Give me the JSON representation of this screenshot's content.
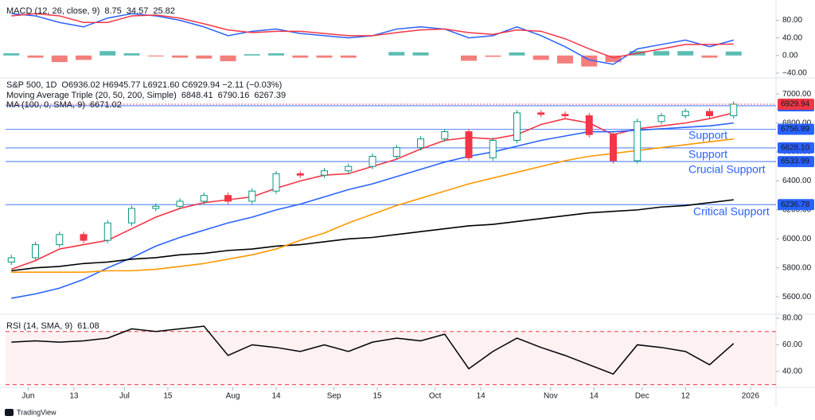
{
  "chart_data": [
    {
      "type": "macd",
      "title": "MACD (12, 26, close, 9)",
      "readouts": [
        {
          "text": "8.75",
          "color": "#26a69a"
        },
        {
          "text": "34.57",
          "color": "#2962ff"
        },
        {
          "text": "25.82",
          "color": "#f23645"
        }
      ],
      "x": [
        0,
        5,
        10,
        15,
        20,
        25,
        30,
        35,
        40,
        45,
        50,
        55,
        60,
        65,
        70,
        75,
        80,
        85,
        90,
        95,
        100,
        105,
        110,
        115,
        120,
        125,
        130,
        135,
        140,
        145,
        150
      ],
      "xlim": [
        -1.2,
        158.8
      ],
      "ylim": [
        -51,
        117
      ],
      "yticks": [
        {
          "value": -40,
          "label": "−40.00"
        },
        {
          "value": 0,
          "label": "0.00"
        },
        {
          "value": 40,
          "label": "40.00"
        },
        {
          "value": 80,
          "label": "80.00"
        }
      ],
      "histogram": {
        "positive_color": "#26a69a",
        "negative_color": "#ef5350",
        "values": [
          5,
          -5,
          -15,
          -10,
          10,
          5,
          -2,
          -5,
          -7,
          -13,
          3,
          5,
          -5,
          -5,
          -5,
          0,
          8,
          7,
          0,
          -12,
          -3,
          7,
          -10,
          -18,
          -25,
          -15,
          10,
          10,
          10,
          -5,
          9
        ]
      },
      "series": [
        {
          "color": "#2962ff",
          "values": [
            95,
            90,
            75,
            65,
            85,
            95,
            90,
            80,
            65,
            45,
            55,
            60,
            50,
            45,
            40,
            45,
            60,
            65,
            60,
            40,
            45,
            65,
            45,
            20,
            -10,
            -20,
            15,
            25,
            35,
            20,
            35
          ]
        },
        {
          "color": "#f23645",
          "values": [
            90,
            95,
            90,
            75,
            75,
            90,
            92,
            85,
            72,
            58,
            52,
            55,
            55,
            50,
            45,
            45,
            52,
            58,
            60,
            52,
            48,
            58,
            55,
            38,
            15,
            -5,
            5,
            15,
            25,
            25,
            26
          ]
        }
      ]
    },
    {
      "type": "candlestick",
      "title": "S&P 500, 1D",
      "readout": "O6936.02 H6945.77 L6921.60 C6929.94 −2.11 (−0.03%)",
      "indicators": [
        {
          "label": "Moving Average Triple (20, 50, 200, Simple)",
          "readouts": [
            {
              "text": "6848.41",
              "color": "#f23645"
            },
            {
              "text": "6790.16",
              "color": "#2962ff"
            },
            {
              "text": "6267.39",
              "color": "#131722"
            }
          ]
        },
        {
          "label": "MA (100, 0, SMA, 9)",
          "readouts": [
            {
              "text": "6671.02",
              "color": "#ff9800"
            }
          ]
        }
      ],
      "x": [
        0,
        5,
        10,
        15,
        20,
        25,
        30,
        35,
        40,
        45,
        50,
        55,
        60,
        65,
        70,
        75,
        80,
        85,
        90,
        95,
        100,
        105,
        110,
        115,
        120,
        125,
        130,
        135,
        140,
        145,
        150
      ],
      "xlim": [
        -1.2,
        158.8
      ],
      "xticks": [
        {
          "value": 3.5,
          "label": "Jun"
        },
        {
          "value": 13,
          "label": "13"
        },
        {
          "value": 23.5,
          "label": "Jul"
        },
        {
          "value": 32.5,
          "label": "15"
        },
        {
          "value": 46,
          "label": "Aug"
        },
        {
          "value": 55,
          "label": "14"
        },
        {
          "value": 67,
          "label": "Sep"
        },
        {
          "value": 76,
          "label": "15"
        },
        {
          "value": 88,
          "label": "Oct"
        },
        {
          "value": 97.5,
          "label": "14"
        },
        {
          "value": 112,
          "label": "Nov"
        },
        {
          "value": 121,
          "label": "14"
        },
        {
          "value": 131,
          "label": "Dec"
        },
        {
          "value": 140,
          "label": "12"
        },
        {
          "value": 153.5,
          "label": "2026"
        }
      ],
      "ylim": [
        5480,
        7100
      ],
      "yticks": [
        {
          "value": 5600,
          "label": "5600.00"
        },
        {
          "value": 5800,
          "label": "5800.00"
        },
        {
          "value": 6000,
          "label": "6000.00"
        },
        {
          "value": 6200,
          "label": "6200.00"
        },
        {
          "value": 6400,
          "label": "6400.00"
        },
        {
          "value": 6600,
          "label": "6600.00"
        },
        {
          "value": 6800,
          "label": "6800.00"
        },
        {
          "value": 7000,
          "label": "7000.00"
        }
      ],
      "up_color": "#089981",
      "down_color": "#f23645",
      "open": [
        5840,
        5870,
        5960,
        6030,
        5990,
        6110,
        6210,
        6225,
        6260,
        6300,
        6260,
        6330,
        6450,
        6440,
        6470,
        6500,
        6570,
        6630,
        6690,
        6740,
        6560,
        6680,
        6870,
        6860,
        6850,
        6720,
        6540,
        6810,
        6850,
        6880,
        6850
      ],
      "high": [
        5890,
        5980,
        6050,
        6050,
        6130,
        6230,
        6245,
        6280,
        6320,
        6320,
        6350,
        6470,
        6470,
        6490,
        6520,
        6590,
        6650,
        6710,
        6760,
        6760,
        6700,
        6890,
        6890,
        6880,
        6870,
        6740,
        6830,
        6870,
        6900,
        6900,
        6950
      ],
      "low": [
        5820,
        5850,
        5940,
        5970,
        5970,
        6090,
        6190,
        6205,
        6240,
        6240,
        6240,
        6310,
        6420,
        6420,
        6450,
        6480,
        6550,
        6610,
        6670,
        6540,
        6540,
        6660,
        6840,
        6830,
        6700,
        6520,
        6520,
        6790,
        6830,
        6830,
        6830
      ],
      "close": [
        5870,
        5960,
        6030,
        5990,
        6110,
        6210,
        6225,
        6260,
        6300,
        6260,
        6330,
        6450,
        6440,
        6470,
        6500,
        6570,
        6630,
        6690,
        6740,
        6560,
        6680,
        6870,
        6860,
        6850,
        6720,
        6540,
        6810,
        6850,
        6880,
        6850,
        6930
      ],
      "series": [
        {
          "color": "#f23645",
          "values": [
            5790,
            5850,
            5930,
            5960,
            5990,
            6070,
            6150,
            6210,
            6250,
            6270,
            6290,
            6350,
            6400,
            6440,
            6450,
            6500,
            6550,
            6620,
            6680,
            6700,
            6690,
            6720,
            6790,
            6830,
            6800,
            6720,
            6760,
            6780,
            6800,
            6830,
            6870
          ]
        },
        {
          "color": "#2962ff",
          "values": [
            5590,
            5620,
            5660,
            5720,
            5800,
            5870,
            5950,
            6010,
            6060,
            6110,
            6150,
            6200,
            6240,
            6290,
            6340,
            6380,
            6430,
            6480,
            6530,
            6570,
            6600,
            6640,
            6680,
            6710,
            6740,
            6740,
            6750,
            6760,
            6770,
            6780,
            6800
          ]
        },
        {
          "color": "#000000",
          "values": [
            5780,
            5800,
            5810,
            5830,
            5840,
            5860,
            5870,
            5890,
            5900,
            5920,
            5930,
            5950,
            5960,
            5980,
            6000,
            6010,
            6030,
            6050,
            6070,
            6090,
            6100,
            6120,
            6140,
            6160,
            6180,
            6190,
            6200,
            6220,
            6230,
            6250,
            6270
          ]
        },
        {
          "color": "#ff9800",
          "values": [
            5770,
            5770,
            5770,
            5770,
            5780,
            5780,
            5790,
            5810,
            5830,
            5860,
            5890,
            5930,
            5990,
            6040,
            6110,
            6170,
            6230,
            6280,
            6330,
            6380,
            6420,
            6460,
            6500,
            6540,
            6570,
            6590,
            6610,
            6630,
            6650,
            6670,
            6690
          ]
        }
      ],
      "last_price": 6929.94,
      "last_color": "#f23645",
      "levels": [
        6919.09,
        6756.89,
        {
          "value": 6628.1,
          "label": "6628.10"
        },
        6533.99,
        6236.78
      ],
      "level_color": "#2962ff",
      "annotations": [
        "Support",
        "Support",
        "Crucial Support",
        "Critical Support"
      ]
    },
    {
      "type": "rsi",
      "title": "RSI (14, SMA, 9)",
      "readouts": [
        {
          "text": "61.08",
          "color": "#131722"
        }
      ],
      "x": [
        0,
        5,
        10,
        15,
        20,
        25,
        30,
        35,
        40,
        45,
        50,
        55,
        60,
        65,
        70,
        75,
        80,
        85,
        90,
        95,
        100,
        105,
        110,
        115,
        120,
        125,
        130,
        135,
        140,
        145,
        150
      ],
      "xlim": [
        -1.2,
        158.8
      ],
      "ylim": [
        28,
        83
      ],
      "yticks": [
        {
          "value": 40,
          "label": "40.00"
        },
        {
          "value": 60,
          "label": "60.00"
        },
        {
          "value": 80,
          "label": "80.00"
        }
      ],
      "bands": [
        30,
        70
      ],
      "band_color": "#f23645",
      "series": [
        {
          "color": "#000000",
          "values": [
            62,
            63,
            62,
            63,
            65,
            72,
            70,
            72,
            74,
            52,
            60,
            58,
            55,
            60,
            55,
            62,
            65,
            63,
            68,
            42,
            55,
            65,
            58,
            52,
            45,
            38,
            60,
            58,
            55,
            45,
            61
          ]
        }
      ]
    }
  ],
  "branding": "TradingView"
}
